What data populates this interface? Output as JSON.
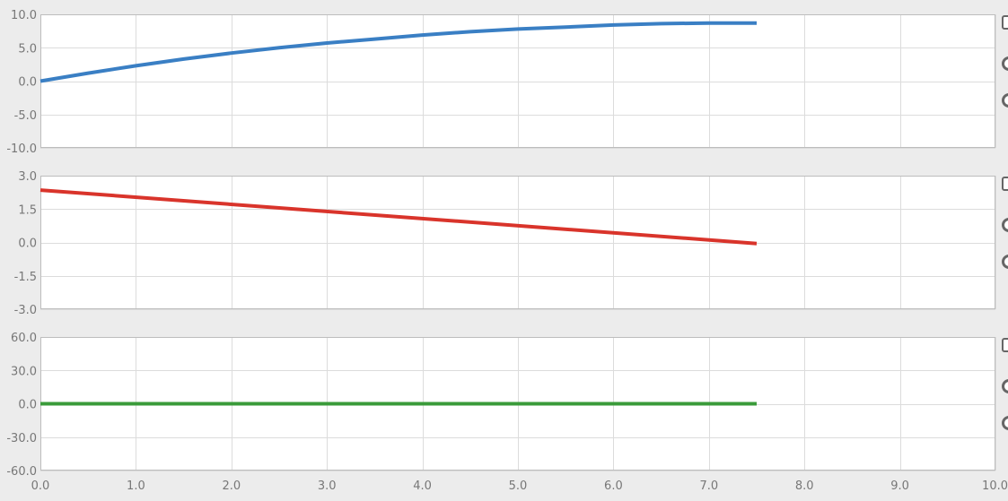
{
  "chart_data": [
    {
      "type": "line",
      "title": "",
      "xlabel": "",
      "ylabel": "",
      "xlim": [
        0,
        10
      ],
      "ylim": [
        -10,
        10
      ],
      "x_ticks": [
        "0.0",
        "1.0",
        "2.0",
        "3.0",
        "4.0",
        "5.0",
        "6.0",
        "7.0",
        "8.0",
        "9.0",
        "10.0"
      ],
      "y_ticks": [
        "10.0",
        "5.0",
        "0.0",
        "-5.0",
        "-10.0"
      ],
      "show_x_tick_labels": false,
      "grid": true,
      "series": [
        {
          "color": "#3a7fc4",
          "x": [
            0.0,
            0.5,
            1.0,
            1.5,
            2.0,
            2.5,
            3.0,
            3.5,
            4.0,
            4.5,
            5.0,
            5.5,
            6.0,
            6.5,
            7.0,
            7.5
          ],
          "y": [
            0.0,
            1.2,
            2.3,
            3.3,
            4.2,
            5.0,
            5.7,
            6.3,
            6.9,
            7.4,
            7.8,
            8.1,
            8.4,
            8.6,
            8.7,
            8.7
          ]
        }
      ]
    },
    {
      "type": "line",
      "title": "",
      "xlabel": "",
      "ylabel": "",
      "xlim": [
        0,
        10
      ],
      "ylim": [
        -3,
        3
      ],
      "x_ticks": [
        "0.0",
        "1.0",
        "2.0",
        "3.0",
        "4.0",
        "5.0",
        "6.0",
        "7.0",
        "8.0",
        "9.0",
        "10.0"
      ],
      "y_ticks": [
        "3.0",
        "1.5",
        "0.0",
        "-1.5",
        "-3.0"
      ],
      "show_x_tick_labels": false,
      "grid": true,
      "series": [
        {
          "color": "#d9342b",
          "x": [
            0.0,
            7.5
          ],
          "y": [
            2.35,
            -0.05
          ]
        }
      ]
    },
    {
      "type": "line",
      "title": "",
      "xlabel": "",
      "ylabel": "",
      "xlim": [
        0,
        10
      ],
      "ylim": [
        -60,
        60
      ],
      "x_ticks": [
        "0.0",
        "1.0",
        "2.0",
        "3.0",
        "4.0",
        "5.0",
        "6.0",
        "7.0",
        "8.0",
        "9.0",
        "10.0"
      ],
      "y_ticks": [
        "60.0",
        "30.0",
        "0.0",
        "-30.0",
        "-60.0"
      ],
      "show_x_tick_labels": true,
      "grid": true,
      "series": [
        {
          "color": "#3a9b3a",
          "x": [
            0.0,
            7.5
          ],
          "y": [
            0.0,
            0.0
          ]
        }
      ]
    }
  ],
  "side_controls": [
    {
      "type": "checkbox",
      "checked": false
    },
    {
      "type": "radio",
      "checked": false
    },
    {
      "type": "radio",
      "checked": false
    }
  ]
}
